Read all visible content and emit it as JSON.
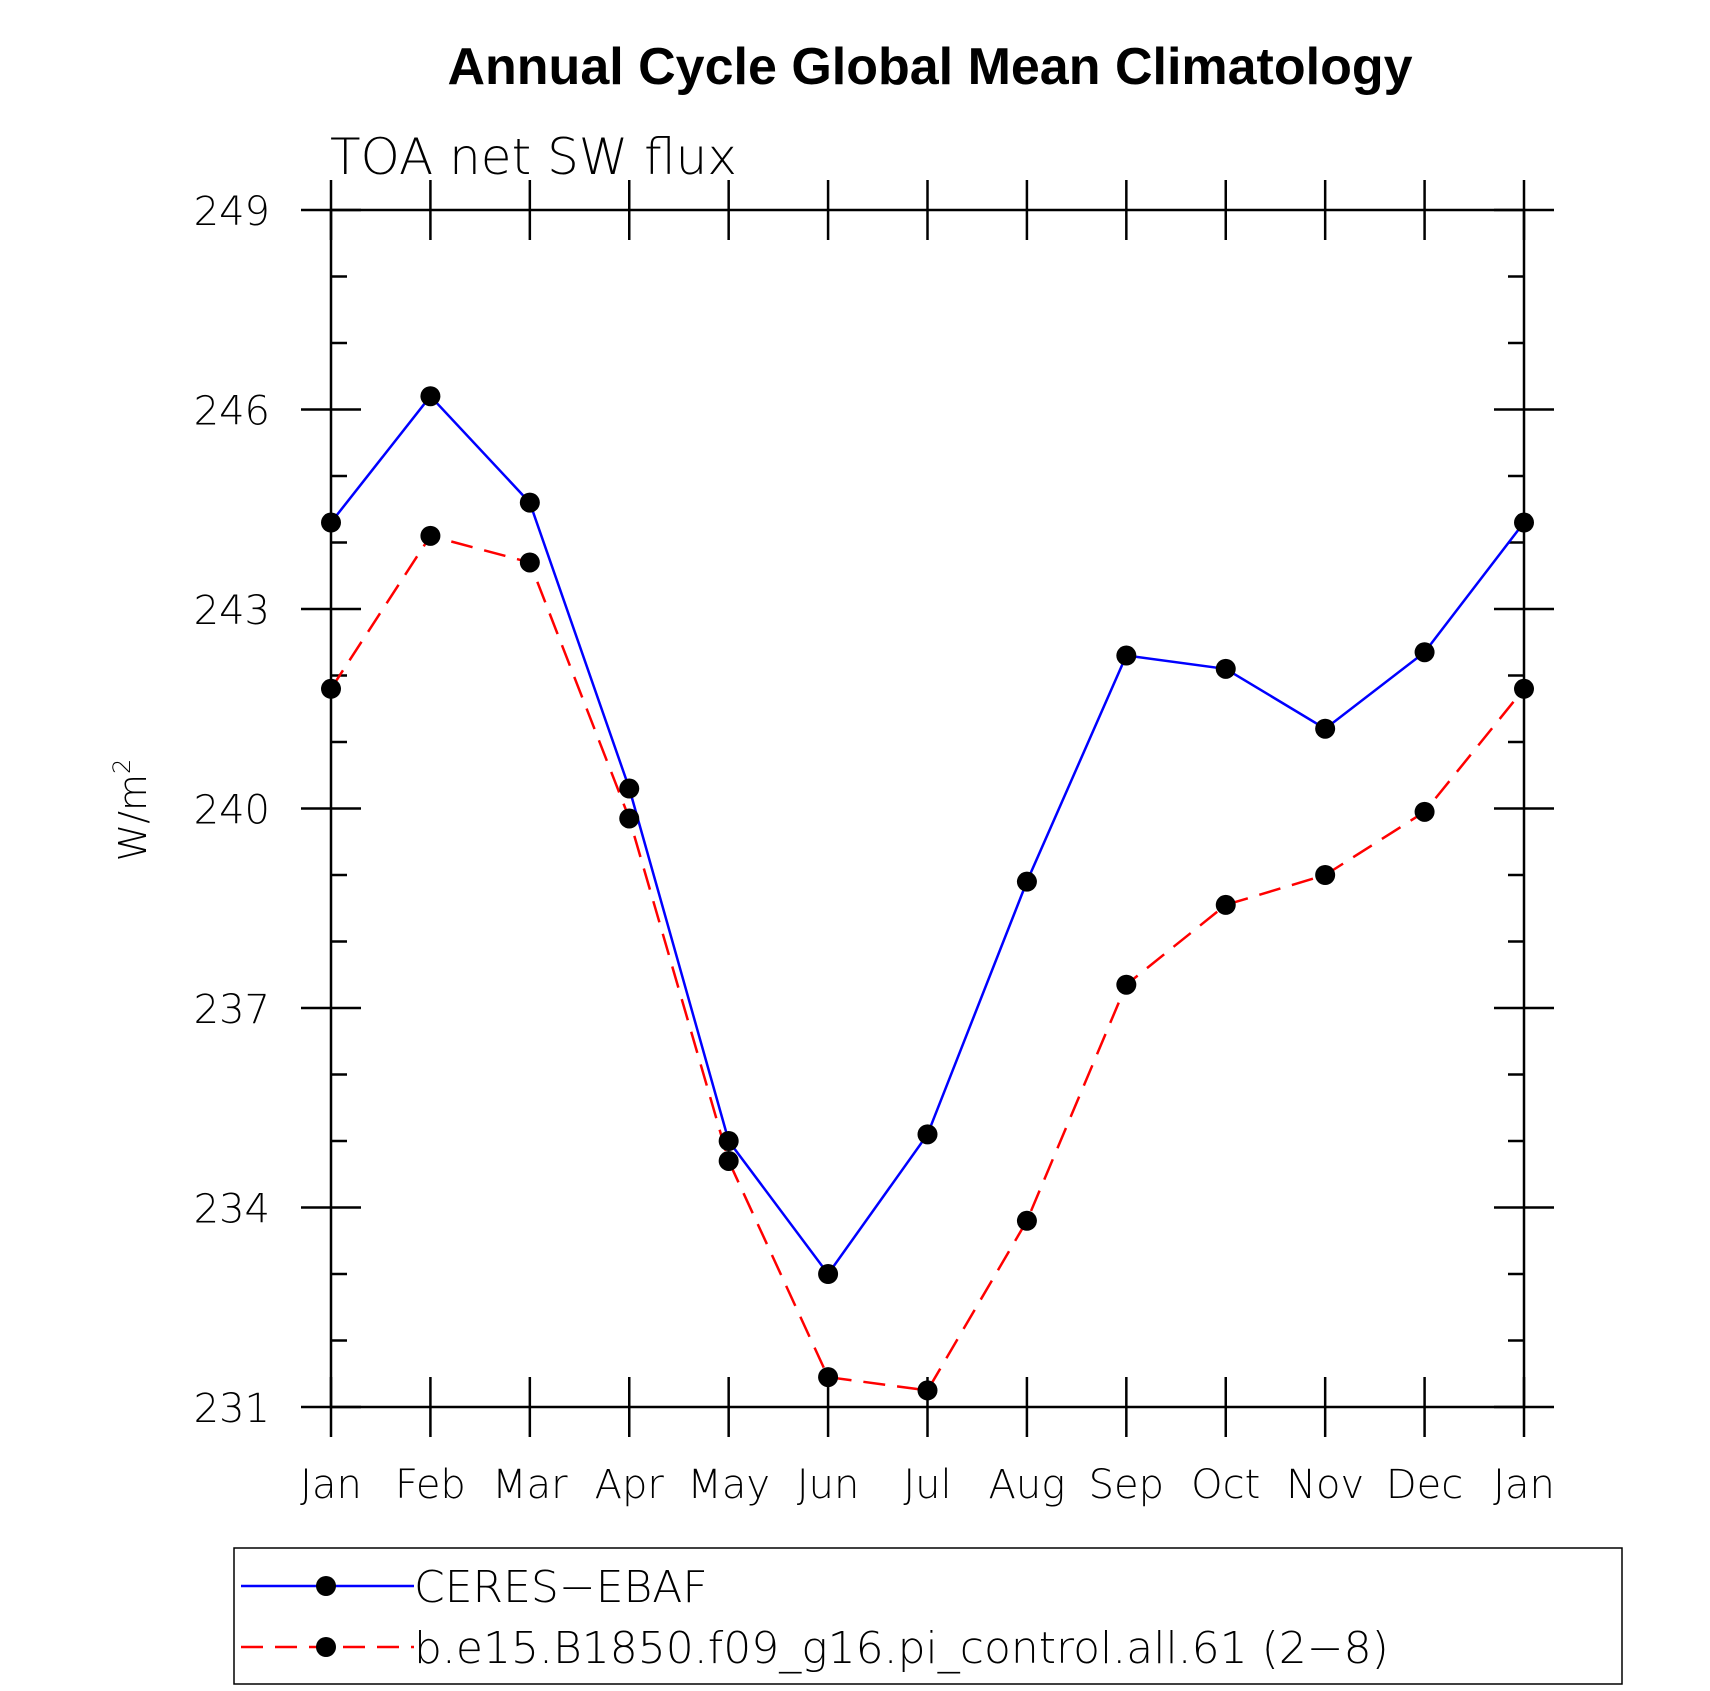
{
  "chart_data": {
    "type": "line",
    "title": "Annual Cycle Global Mean Climatology",
    "subtitle": "TOA net SW flux",
    "ylabel_base": "W/m",
    "ylabel_exponent": "2",
    "xlabel": "",
    "categories": [
      "Jan",
      "Feb",
      "Mar",
      "Apr",
      "May",
      "Jun",
      "Jul",
      "Aug",
      "Sep",
      "Oct",
      "Nov",
      "Dec",
      "Jan"
    ],
    "ylim": [
      231,
      249
    ],
    "yticks": [
      231,
      234,
      237,
      240,
      243,
      246,
      249
    ],
    "y_minor_step": 1,
    "series": [
      {
        "name": "CERES−EBAF",
        "color": "#0000ff",
        "dash": "solid",
        "values": [
          244.3,
          246.2,
          244.6,
          240.3,
          235.0,
          233.0,
          235.1,
          238.9,
          242.3,
          242.1,
          241.2,
          242.35,
          244.3
        ]
      },
      {
        "name": "b.e15.B1850.f09_g16.pi_control.all.61 (2−8)",
        "color": "#ff0000",
        "dash": "dashed",
        "values": [
          241.8,
          244.1,
          243.7,
          239.85,
          234.7,
          231.45,
          231.25,
          233.8,
          237.35,
          238.55,
          239.0,
          239.95,
          241.8
        ]
      }
    ],
    "marker_color": "#000000",
    "grid": false,
    "legend_position": "bottom"
  }
}
